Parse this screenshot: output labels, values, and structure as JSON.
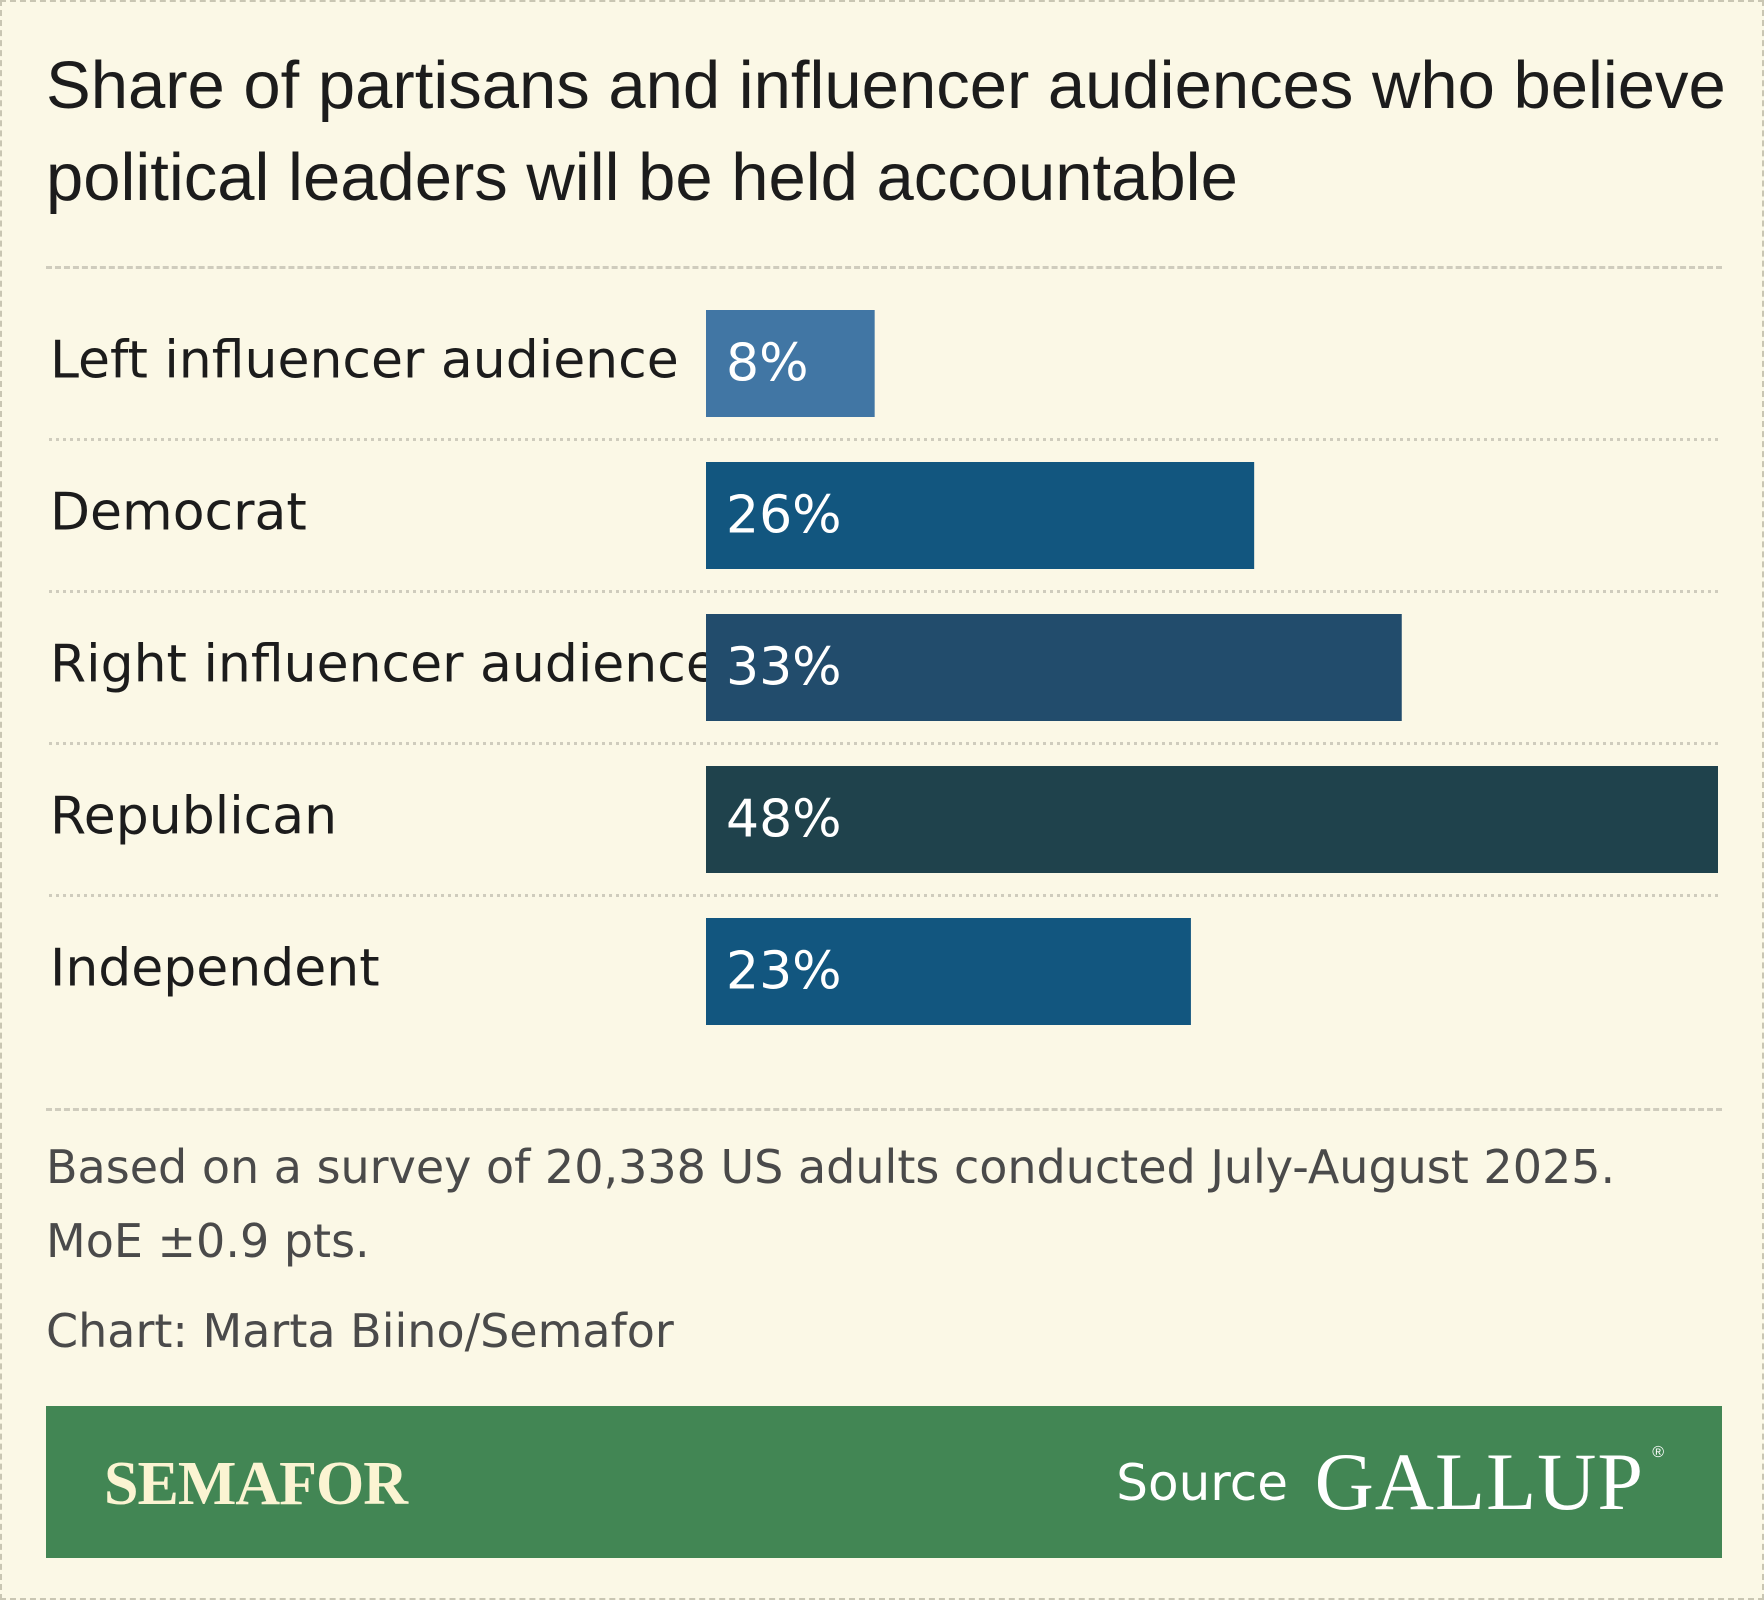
{
  "title": "Share of partisans and influencer audiences who believe political leaders will be held accountable",
  "chart_data": {
    "type": "bar",
    "orientation": "horizontal",
    "categories": [
      "Left influencer audience",
      "Democrat",
      "Right influencer audience",
      "Republican",
      "Independent"
    ],
    "values": [
      8,
      26,
      33,
      48,
      23
    ],
    "value_labels": [
      "8%",
      "26%",
      "33%",
      "48%",
      "23%"
    ],
    "bar_colors": [
      "#4176a4",
      "#12567f",
      "#224c6c",
      "#1f424c",
      "#12567f"
    ],
    "xlim": [
      0,
      48
    ],
    "grid": false
  },
  "note": "Based on a survey of 20,338 US adults conducted July-August 2025. MoE ±0.9 pts.",
  "credit": "Chart: Marta Biino/Semafor",
  "footer": {
    "brand": "SEMAFOR",
    "source_label": "Source",
    "source_name": "GALLUP",
    "source_mark": "®",
    "background": "#428654"
  },
  "colors": {
    "background": "#fbf8e6",
    "text": "#1c1c1c",
    "muted_text": "#4a4a4a"
  }
}
